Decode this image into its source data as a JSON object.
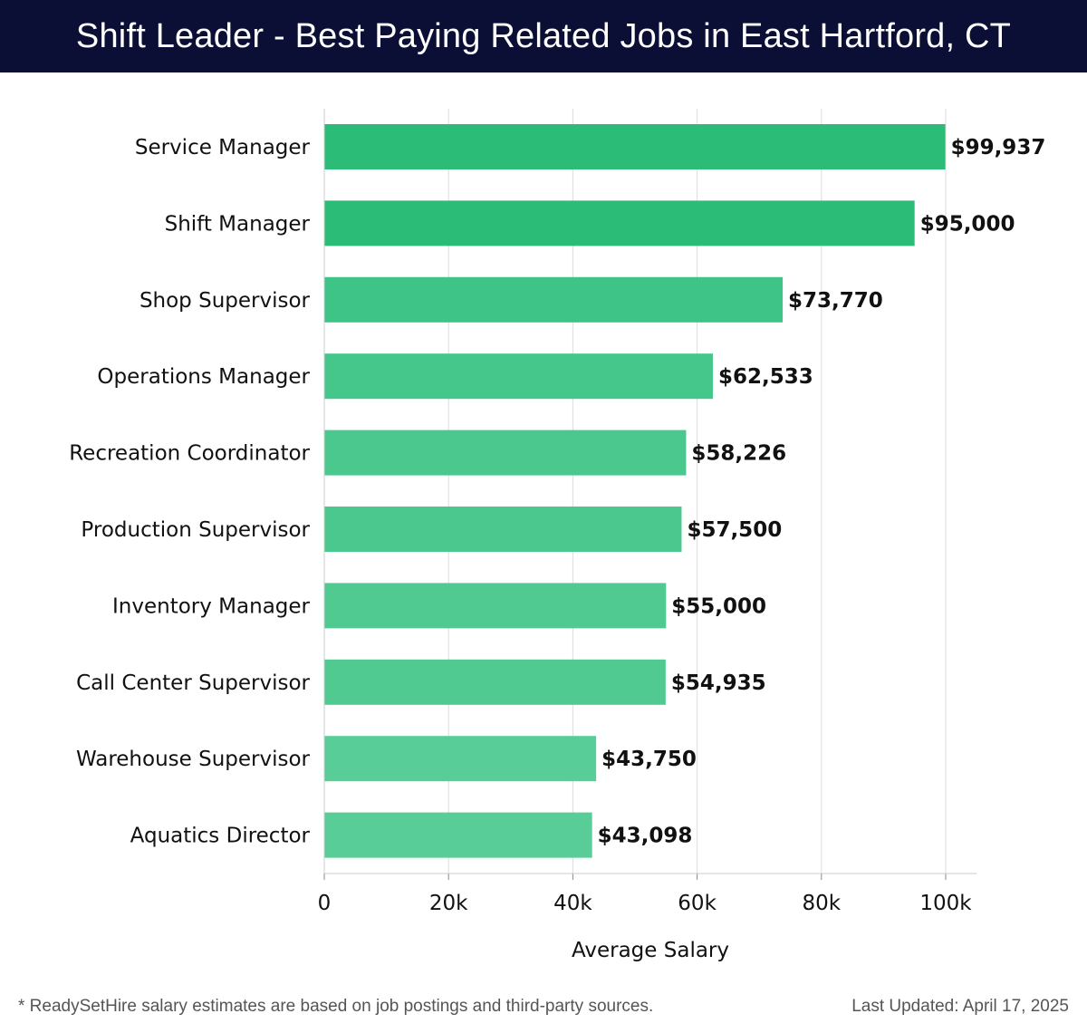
{
  "header": {
    "title": "Shift Leader - Best Paying Related Jobs in East Hartford, CT"
  },
  "chart_data": {
    "type": "bar",
    "orientation": "horizontal",
    "title": "Shift Leader - Best Paying Related Jobs in East Hartford, CT",
    "categories": [
      "Service Manager",
      "Shift Manager",
      "Shop Supervisor",
      "Operations Manager",
      "Recreation Coordinator",
      "Production Supervisor",
      "Inventory Manager",
      "Call Center Supervisor",
      "Warehouse Supervisor",
      "Aquatics Director"
    ],
    "values": [
      99937,
      95000,
      73770,
      62533,
      58226,
      57500,
      55000,
      54935,
      43750,
      43098
    ],
    "value_labels": [
      "$99,937",
      "$95,000",
      "$73,770",
      "$62,533",
      "$58,226",
      "$57,500",
      "$55,000",
      "$54,935",
      "$43,750",
      "$43,098"
    ],
    "colors": [
      "#2bbd77",
      "#2bbd77",
      "#3dc486",
      "#45c68a",
      "#4bc88d",
      "#4bc88d",
      "#50ca91",
      "#50ca91",
      "#58cd97",
      "#58cd97"
    ],
    "xlabel": "Average Salary",
    "ylabel": "",
    "xlim": [
      0,
      105000
    ],
    "xticks": [
      0,
      20000,
      40000,
      60000,
      80000,
      100000
    ],
    "xtick_labels": [
      "0",
      "20k",
      "40k",
      "60k",
      "80k",
      "100k"
    ],
    "grid": true
  },
  "footer": {
    "note": "* ReadySetHire salary estimates are based on job postings and third-party sources.",
    "updated": "Last Updated: April 17, 2025"
  }
}
